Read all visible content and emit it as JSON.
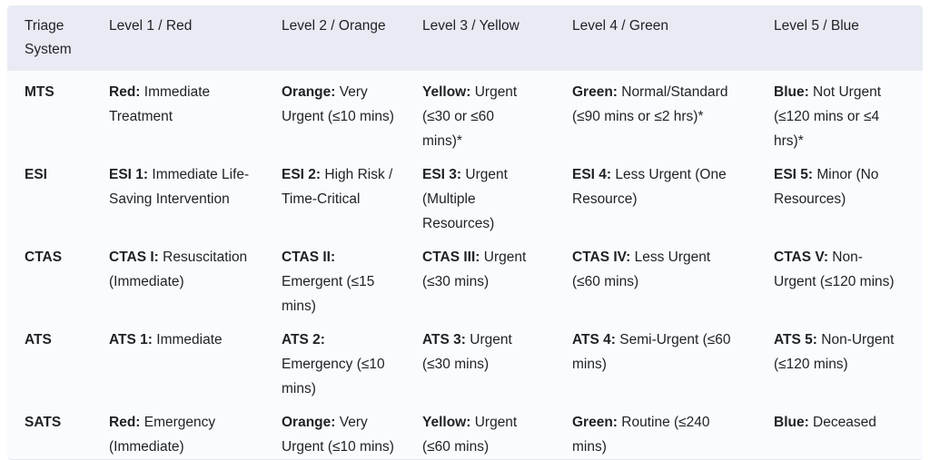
{
  "colors": {
    "header_bg": "#e8ebf3",
    "body_bg": "#fafbfe",
    "text": "#1f2124",
    "border": "#e2e5ec",
    "page_bg": "#ffffff"
  },
  "table": {
    "headers": [
      "Triage System",
      "Level 1 / Red",
      "Level 2 / Orange",
      "Level 3 / Yellow",
      "Level 4 / Green",
      "Level 5 / Blue"
    ],
    "rows": [
      {
        "system": "MTS",
        "cells": [
          {
            "term": "Red:",
            "desc": " Immediate Treatment"
          },
          {
            "term": "Orange:",
            "desc": " Very Urgent (≤10 mins)"
          },
          {
            "term": "Yellow:",
            "desc": " Urgent (≤30 or ≤60 mins)*"
          },
          {
            "term": "Green:",
            "desc": " Normal/Standard (≤90 mins or ≤2 hrs)*"
          },
          {
            "term": "Blue:",
            "desc": " Not Urgent (≤120 mins or ≤4 hrs)*"
          }
        ]
      },
      {
        "system": "ESI",
        "cells": [
          {
            "term": "ESI 1:",
            "desc": " Immediate Life-Saving Intervention"
          },
          {
            "term": "ESI 2:",
            "desc": " High Risk / Time-Critical"
          },
          {
            "term": "ESI 3:",
            "desc": " Urgent (Multiple Resources)"
          },
          {
            "term": "ESI 4:",
            "desc": " Less Urgent (One Resource)"
          },
          {
            "term": "ESI 5:",
            "desc": " Minor (No Resources)"
          }
        ]
      },
      {
        "system": "CTAS",
        "cells": [
          {
            "term": "CTAS I:",
            "desc": " Resuscitation (Immediate)"
          },
          {
            "term": "CTAS II:",
            "desc": " Emergent (≤15 mins)"
          },
          {
            "term": "CTAS III:",
            "desc": " Urgent (≤30 mins)"
          },
          {
            "term": "CTAS IV:",
            "desc": " Less Urgent (≤60 mins)"
          },
          {
            "term": "CTAS V:",
            "desc": " Non-Urgent (≤120 mins)"
          }
        ]
      },
      {
        "system": "ATS",
        "cells": [
          {
            "term": "ATS 1:",
            "desc": " Immediate"
          },
          {
            "term": "ATS 2:",
            "desc": " Emergency (≤10 mins)"
          },
          {
            "term": "ATS 3:",
            "desc": " Urgent (≤30 mins)"
          },
          {
            "term": "ATS 4:",
            "desc": " Semi-Urgent (≤60 mins)"
          },
          {
            "term": "ATS 5:",
            "desc": " Non-Urgent (≤120 mins)"
          }
        ]
      },
      {
        "system": "SATS",
        "cells": [
          {
            "term": "Red:",
            "desc": " Emergency (Immediate)"
          },
          {
            "term": "Orange:",
            "desc": " Very Urgent (≤10 mins)"
          },
          {
            "term": "Yellow:",
            "desc": " Urgent (≤60 mins)"
          },
          {
            "term": "Green:",
            "desc": " Routine (≤240 mins)"
          },
          {
            "term": "Blue:",
            "desc": " Deceased"
          }
        ]
      }
    ]
  }
}
